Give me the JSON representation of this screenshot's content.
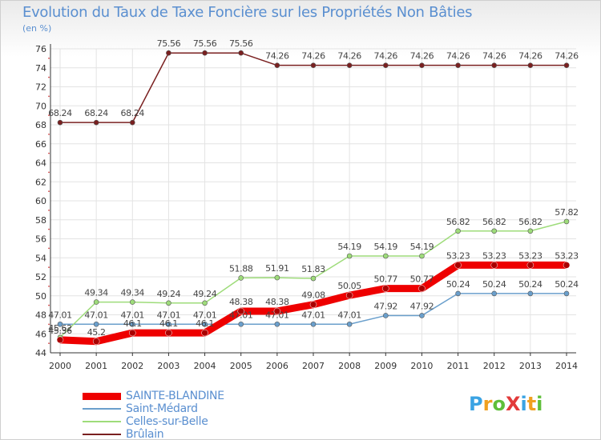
{
  "title": "Evolution du Taux de Taxe Foncière sur les Propriétés Non Bâties",
  "unit_label": "(en %)",
  "logo": {
    "text": "ProXiti",
    "colors": [
      "#3aa3e3",
      "#f0a020",
      "#5fbf3a",
      "#e23a3a",
      "#3aa3e3",
      "#f0a020",
      "#5fbf3a"
    ]
  },
  "chart_data": {
    "type": "line",
    "title": "Evolution du Taux de Taxe Foncière sur les Propriétés Non Bâties",
    "ylabel": "(en %)",
    "xlabel": "",
    "ylim": [
      44,
      76
    ],
    "yticks": [
      44,
      46,
      48,
      50,
      52,
      54,
      56,
      58,
      60,
      62,
      64,
      66,
      68,
      70,
      72,
      74,
      76
    ],
    "x": [
      "2000",
      "2001",
      "2002",
      "2003",
      "2004",
      "2005",
      "2006",
      "2007",
      "2008",
      "2009",
      "2010",
      "2011",
      "2012",
      "2013",
      "2014"
    ],
    "legend_position": "bottom-left",
    "series": [
      {
        "name": "SAINTE-BLANDINE",
        "color": "#ee0000",
        "width": 9,
        "marker": 4,
        "values": [
          45.36,
          45.2,
          46.1,
          46.1,
          46.1,
          48.38,
          48.38,
          49.08,
          50.05,
          50.77,
          50.77,
          53.23,
          53.23,
          53.23,
          53.23
        ],
        "labels": [
          "45.36",
          "45.2",
          "46.1",
          "46.1",
          "46.1",
          "48.38",
          "48.38",
          "49.08",
          "50.05",
          "50.77",
          "50.77",
          "53.23",
          "53.23",
          "53.23",
          "53.23"
        ]
      },
      {
        "name": "Saint-Médard",
        "color": "#6a9fcc",
        "width": 1.5,
        "marker": 3,
        "values": [
          47.01,
          47.01,
          47.01,
          47.01,
          47.01,
          47.01,
          47.01,
          47.01,
          47.01,
          47.92,
          47.92,
          50.24,
          50.24,
          50.24,
          50.24
        ],
        "labels": [
          "47.01",
          "47.01",
          "47.01",
          "47.01",
          "47.01",
          "47.01",
          "47.01",
          "47.01",
          "47.01",
          "47.92",
          "47.92",
          "50.24",
          "50.24",
          "50.24",
          "50.24"
        ]
      },
      {
        "name": "Celles-sur-Belle",
        "color": "#9edc7a",
        "width": 1.5,
        "marker": 3,
        "values": [
          45.62,
          49.34,
          49.34,
          49.24,
          49.24,
          51.88,
          51.91,
          51.83,
          54.19,
          54.19,
          54.19,
          56.82,
          56.82,
          56.82,
          57.82
        ],
        "labels": [
          "45.62",
          "49.34",
          "49.34",
          "49.24",
          "49.24",
          "51.88",
          "51.91",
          "51.83",
          "54.19",
          "54.19",
          "54.19",
          "56.82",
          "56.82",
          "56.82",
          "57.82"
        ]
      },
      {
        "name": "Brûlain",
        "color": "#7a2020",
        "width": 1.5,
        "marker": 3,
        "values": [
          68.24,
          68.24,
          68.24,
          75.56,
          75.56,
          75.56,
          74.26,
          74.26,
          74.26,
          74.26,
          74.26,
          74.26,
          74.26,
          74.26,
          74.26
        ],
        "labels": [
          "68.24",
          "68.24",
          "68.24",
          "75.56",
          "75.56",
          "75.56",
          "74.26",
          "74.26",
          "74.26",
          "74.26",
          "74.26",
          "74.26",
          "74.26",
          "74.26",
          "74.26"
        ]
      }
    ]
  }
}
